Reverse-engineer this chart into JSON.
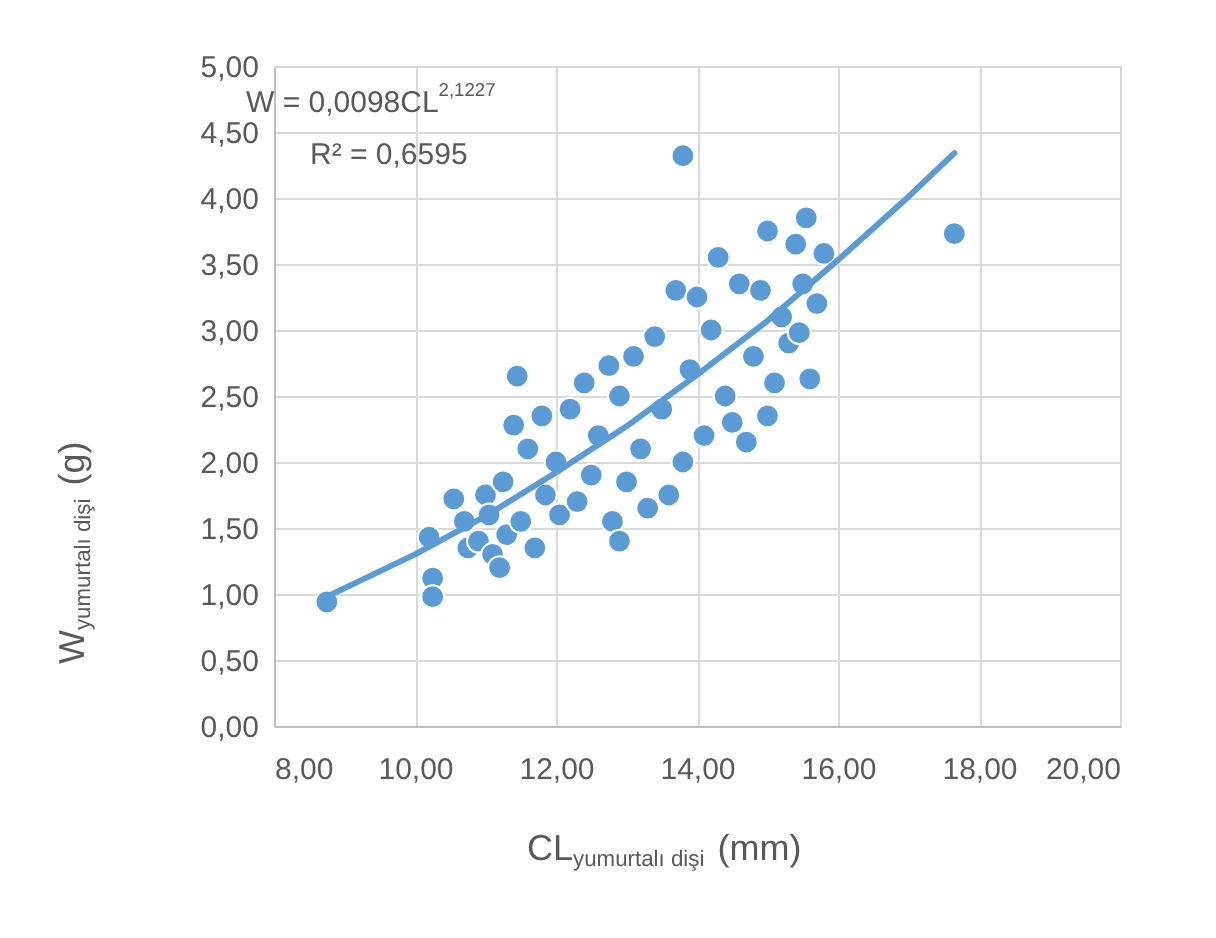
{
  "chart_data": {
    "type": "scatter",
    "xlabel": "CL$_{yumurtalı dişi}$ (mm)",
    "ylabel": "W$_{yumurtalı dişi}$ (g)",
    "annotations": [
      "W = 0,0098CL$^{2,1227}$",
      "R² = 0,6595"
    ],
    "xlim": [
      8,
      20
    ],
    "ylim": [
      0,
      5
    ],
    "xticks": [
      {
        "value": 8,
        "label": "8,00"
      },
      {
        "value": 10,
        "label": "10,00"
      },
      {
        "value": 12,
        "label": "12,00"
      },
      {
        "value": 14,
        "label": "14,00"
      },
      {
        "value": 16,
        "label": "16,00"
      },
      {
        "value": 18,
        "label": "18,00"
      },
      {
        "value": 20,
        "label": "20,00"
      }
    ],
    "yticks": [
      {
        "value": 0,
        "label": "0,00"
      },
      {
        "value": 0.5,
        "label": "0,50"
      },
      {
        "value": 1,
        "label": "1,00"
      },
      {
        "value": 1.5,
        "label": "1,50"
      },
      {
        "value": 2,
        "label": "2,00"
      },
      {
        "value": 2.5,
        "label": "2,50"
      },
      {
        "value": 3,
        "label": "3,00"
      },
      {
        "value": 3.5,
        "label": "3,50"
      },
      {
        "value": 4,
        "label": "4,00"
      },
      {
        "value": 4.5,
        "label": "4,50"
      },
      {
        "value": 5,
        "label": "5,00"
      }
    ],
    "grid": true,
    "series": [
      {
        "marker": "circle",
        "color": "#5b9bd5",
        "x": [
          8.75,
          10.2,
          10.25,
          10.25,
          10.55,
          10.7,
          10.75,
          10.9,
          11.0,
          11.05,
          11.1,
          11.2,
          11.25,
          11.3,
          11.4,
          11.45,
          11.5,
          11.6,
          11.7,
          11.8,
          11.85,
          12.0,
          12.05,
          12.2,
          12.3,
          12.4,
          12.5,
          12.6,
          12.75,
          12.8,
          12.9,
          12.9,
          13.0,
          13.1,
          13.2,
          13.3,
          13.4,
          13.5,
          13.6,
          13.7,
          13.8,
          13.8,
          13.9,
          14.0,
          14.1,
          14.2,
          14.3,
          14.4,
          14.5,
          14.6,
          14.7,
          14.8,
          14.9,
          15.0,
          15.0,
          15.1,
          15.2,
          15.3,
          15.4,
          15.45,
          15.5,
          15.55,
          15.6,
          15.7,
          15.8,
          17.65
        ],
        "values": [
          0.94,
          1.43,
          1.12,
          0.98,
          1.72,
          1.55,
          1.35,
          1.4,
          1.75,
          1.6,
          1.3,
          1.2,
          1.85,
          1.45,
          2.28,
          2.65,
          1.55,
          2.1,
          1.35,
          2.35,
          1.75,
          2.0,
          1.6,
          2.4,
          1.7,
          2.6,
          1.9,
          2.2,
          2.73,
          1.55,
          1.4,
          2.5,
          1.85,
          2.8,
          2.1,
          1.65,
          2.95,
          2.4,
          1.75,
          3.3,
          4.32,
          2.0,
          2.7,
          3.25,
          2.2,
          3.0,
          3.55,
          2.5,
          2.3,
          3.35,
          2.15,
          2.8,
          3.3,
          2.35,
          3.75,
          2.6,
          3.1,
          2.9,
          3.65,
          2.98,
          3.35,
          3.85,
          2.63,
          3.2,
          3.58,
          3.73
        ]
      },
      {
        "type": "line",
        "marker": "none",
        "color": "#5b9bd5",
        "x": [
          8.75,
          10,
          11,
          12,
          13,
          14,
          15,
          16,
          17,
          17.65
        ],
        "values": [
          0.98,
          1.3,
          1.59,
          1.92,
          2.27,
          2.66,
          3.07,
          3.53,
          4.01,
          4.34
        ]
      }
    ]
  }
}
